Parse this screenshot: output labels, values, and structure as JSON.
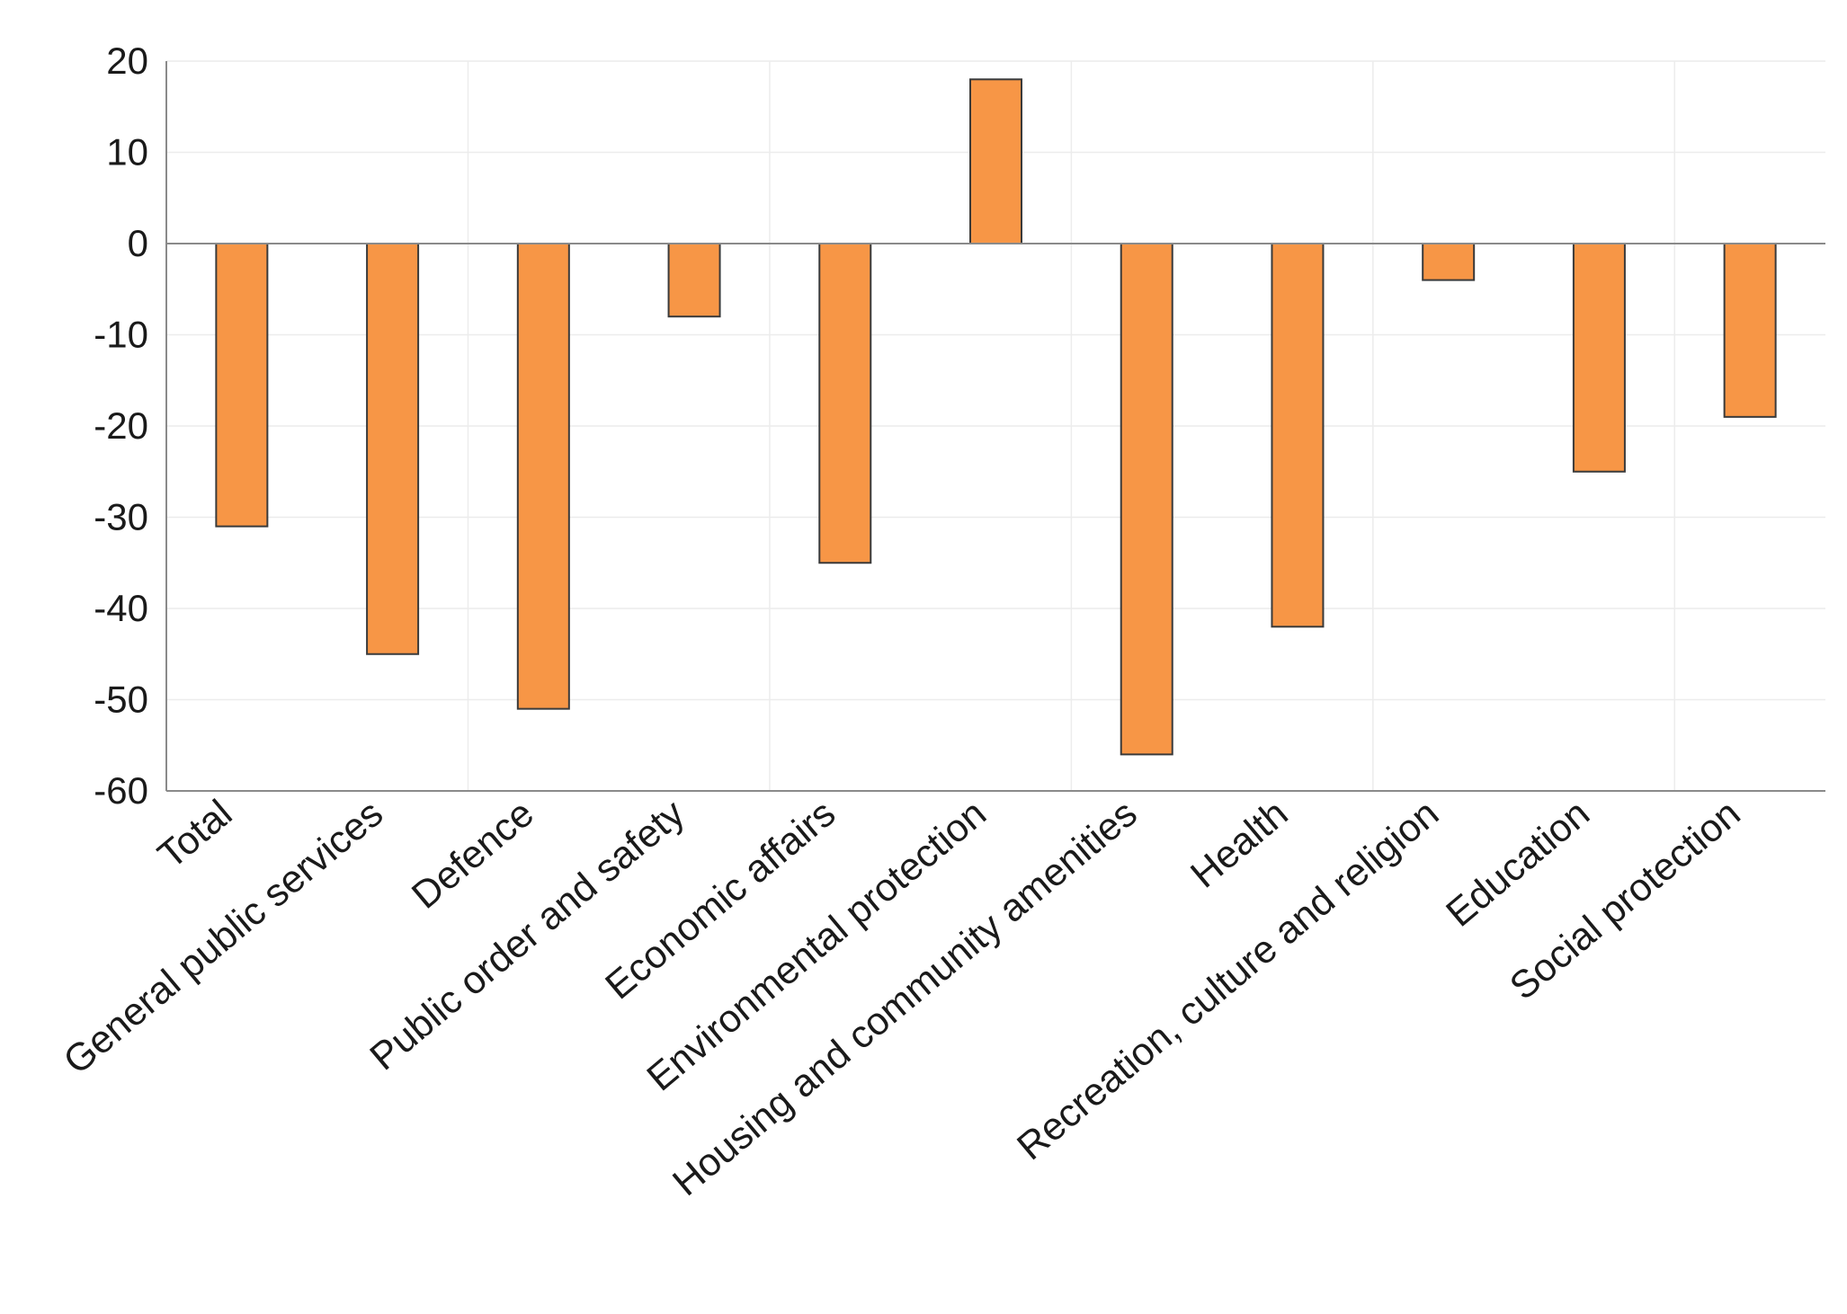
{
  "chart_data": {
    "type": "bar",
    "title": "",
    "xlabel": "",
    "ylabel": "",
    "ylim": [
      -60,
      20
    ],
    "yticks": [
      20,
      10,
      0,
      -10,
      -20,
      -30,
      -40,
      -50,
      -60
    ],
    "grid": true,
    "bar_color": "#F79646",
    "categories": [
      "Total",
      "General public services",
      "Defence",
      "Public order and safety",
      "Economic affairs",
      "Environmental protection",
      "Housing and community amenities",
      "Health",
      "Recreation, culture and religion",
      "Education",
      "Social protection"
    ],
    "values": [
      -31,
      -45,
      -51,
      -8,
      -35,
      18,
      -56,
      -42,
      -4,
      -25,
      -19
    ]
  }
}
